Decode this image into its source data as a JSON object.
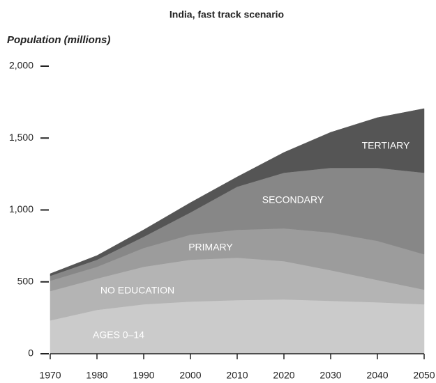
{
  "chart_data": {
    "type": "stacked_area",
    "title": "India, fast track scenario",
    "y_label": "Population (millions)",
    "x": [
      1970,
      1980,
      1990,
      2000,
      2010,
      2020,
      2030,
      2040,
      2050
    ],
    "xlim": [
      1970,
      2050
    ],
    "xticks": [
      1970,
      1980,
      1990,
      2000,
      2010,
      2020,
      2030,
      2040,
      2050
    ],
    "ylim": [
      0,
      2000
    ],
    "yticks": [
      0,
      500,
      {
        "value": 1000,
        "label": "1,000"
      },
      {
        "value": 1500,
        "label": "1,500"
      },
      {
        "value": 2000,
        "label": "2,000"
      }
    ],
    "series": [
      {
        "name": "AGES 0–14",
        "color": "#cbcbcb",
        "values": [
          232,
          305,
          344,
          363,
          373,
          378,
          368,
          358,
          344
        ]
      },
      {
        "name": "NO EDUCATION",
        "color": "#b4b4b4",
        "values": [
          204,
          218,
          261,
          291,
          295,
          266,
          213,
          155,
          102
        ]
      },
      {
        "name": "PRIMARY",
        "color": "#9c9c9c",
        "values": [
          72,
          82,
          131,
          174,
          194,
          228,
          262,
          272,
          246
        ]
      },
      {
        "name": "SECONDARY",
        "color": "#878787",
        "values": [
          34,
          49,
          78,
          155,
          300,
          387,
          450,
          508,
          567
        ]
      },
      {
        "name": "TERTIARY",
        "color": "#555555",
        "values": [
          15,
          29,
          48,
          68,
          68,
          141,
          247,
          349,
          446
        ]
      }
    ]
  }
}
